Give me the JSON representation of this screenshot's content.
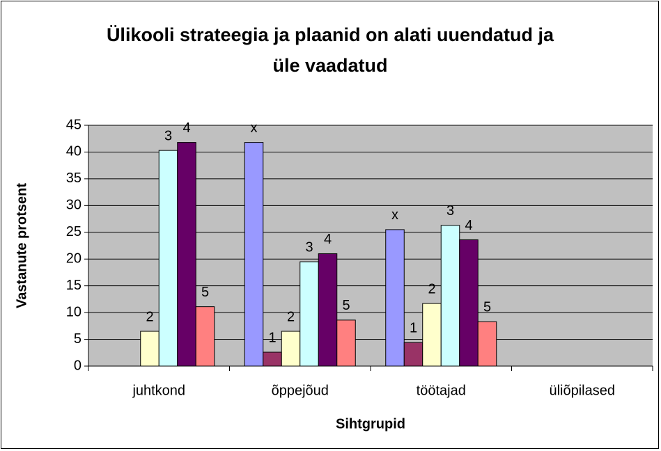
{
  "chart_data": {
    "type": "bar",
    "title": [
      "Ülikooli strateegia ja plaanid on alati uuendatud ja",
      "üle vaadatud"
    ],
    "x_label": "Sihtgrupid",
    "y_label": "Vastanute protsent",
    "categories": [
      "juhtkond",
      "õppejõud",
      "töötajad",
      "üliõpilased"
    ],
    "series": [
      {
        "name": "x",
        "color": "#9999ff",
        "values": [
          null,
          41.8,
          25.5,
          null
        ]
      },
      {
        "name": "1",
        "color": "#993366",
        "values": [
          null,
          2.6,
          4.4,
          null
        ]
      },
      {
        "name": "2",
        "color": "#ffffcc",
        "values": [
          6.5,
          6.5,
          11.7,
          null
        ]
      },
      {
        "name": "3",
        "color": "#ccffff",
        "values": [
          40.3,
          19.5,
          26.3,
          null
        ]
      },
      {
        "name": "4",
        "color": "#660066",
        "values": [
          41.8,
          21,
          23.6,
          null
        ]
      },
      {
        "name": "5",
        "color": "#ff8080",
        "values": [
          11.1,
          8.6,
          8.3,
          null
        ]
      }
    ],
    "ylim": [
      0,
      45
    ],
    "yticks": [
      0,
      5,
      10,
      15,
      20,
      25,
      30,
      35,
      40,
      45
    ],
    "grid": true,
    "background": "#c0c0c0"
  }
}
